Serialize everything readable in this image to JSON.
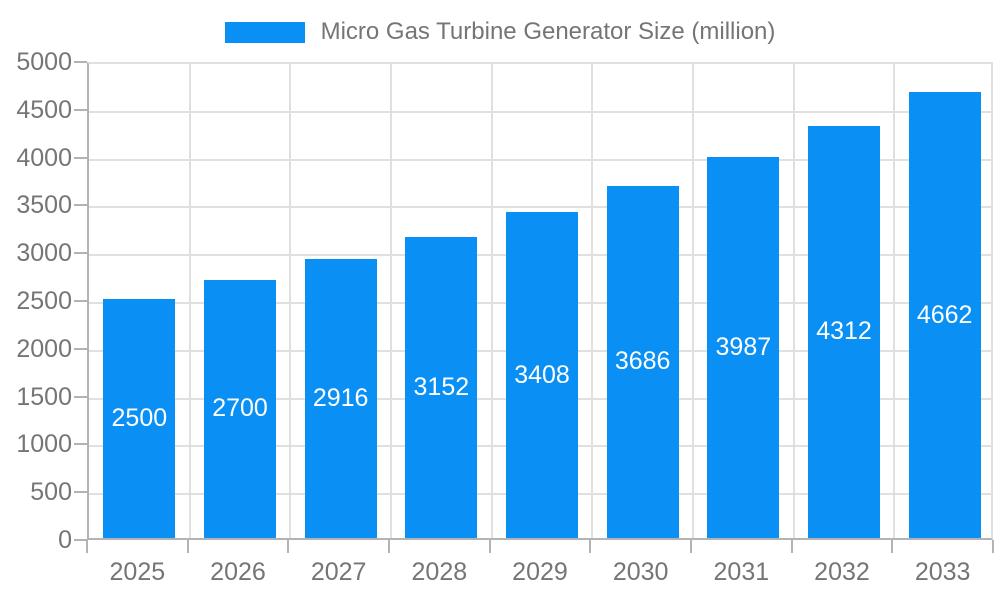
{
  "legend": {
    "label": "Micro Gas Turbine Generator Size (million)"
  },
  "chart_data": {
    "type": "bar",
    "title": "Micro Gas Turbine Generator Size (million)",
    "series": [
      {
        "name": "Micro Gas Turbine Generator Size (million)",
        "values": [
          2500,
          2700,
          2916,
          3152,
          3408,
          3686,
          3987,
          4312,
          4662
        ]
      }
    ],
    "categories": [
      "2025",
      "2026",
      "2027",
      "2028",
      "2029",
      "2030",
      "2031",
      "2032",
      "2033"
    ],
    "xlabel": "",
    "ylabel": "",
    "ylim": [
      0,
      5000
    ],
    "ytick_step": 500,
    "grid": true,
    "legend_position": "top-center",
    "data_labels_position": "inside-center",
    "colors": {
      "bar": "#0a90f5",
      "grid": "#e0e0e0",
      "axis": "#b3b3b3",
      "tick_label": "#757575",
      "data_label": "#ffffff",
      "background": "#ffffff"
    }
  }
}
